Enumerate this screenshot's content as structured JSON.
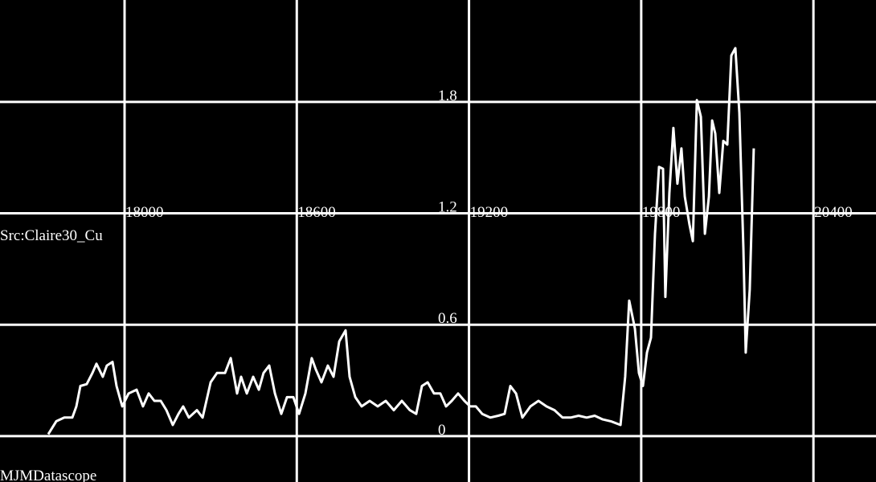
{
  "chart_data": {
    "type": "line",
    "annotations": [
      "Src:Claire30_Cu",
      "MJMDatascope"
    ],
    "xlim": [
      17566,
      20618
    ],
    "ylim": [
      -0.247,
      2.349
    ],
    "xticks": [
      18000,
      18600,
      19200,
      19800,
      20400
    ],
    "yticks": [
      0,
      0.6,
      1.2,
      1.8
    ],
    "grid": true,
    "series": [
      {
        "color": "#ffffff",
        "x": [
          17734,
          17762,
          17790,
          17818,
          17832,
          17846,
          17868,
          17888,
          17902,
          17924,
          17938,
          17958,
          17972,
          17992,
          18014,
          18042,
          18064,
          18084,
          18104,
          18126,
          18146,
          18168,
          18188,
          18204,
          18224,
          18252,
          18272,
          18300,
          18322,
          18350,
          18370,
          18392,
          18406,
          18426,
          18448,
          18468,
          18484,
          18504,
          18524,
          18546,
          18566,
          18588,
          18608,
          18630,
          18652,
          18666,
          18686,
          18708,
          18728,
          18748,
          18770,
          18784,
          18804,
          18826,
          18854,
          18882,
          18910,
          18938,
          18966,
          18994,
          19016,
          19036,
          19056,
          19078,
          19100,
          19120,
          19140,
          19162,
          19184,
          19204,
          19224,
          19246,
          19274,
          19302,
          19324,
          19344,
          19364,
          19386,
          19414,
          19442,
          19470,
          19498,
          19526,
          19554,
          19582,
          19610,
          19638,
          19666,
          19694,
          19728,
          19744,
          19758,
          19778,
          19792,
          19806,
          19820,
          19834,
          19848,
          19862,
          19876,
          19884,
          19898,
          19912,
          19926,
          19940,
          19952,
          19968,
          19980,
          19994,
          20008,
          20022,
          20036,
          20047,
          20058,
          20072,
          20086,
          20100,
          20114,
          20128,
          20142,
          20156,
          20164,
          20178,
          20192
        ],
        "values": [
          0.01,
          0.08,
          0.1,
          0.1,
          0.16,
          0.27,
          0.28,
          0.34,
          0.39,
          0.32,
          0.38,
          0.4,
          0.27,
          0.16,
          0.23,
          0.25,
          0.16,
          0.23,
          0.19,
          0.19,
          0.14,
          0.06,
          0.12,
          0.16,
          0.1,
          0.14,
          0.1,
          0.29,
          0.34,
          0.34,
          0.42,
          0.23,
          0.32,
          0.23,
          0.32,
          0.25,
          0.34,
          0.38,
          0.23,
          0.12,
          0.21,
          0.21,
          0.12,
          0.23,
          0.42,
          0.36,
          0.29,
          0.38,
          0.32,
          0.51,
          0.57,
          0.32,
          0.21,
          0.16,
          0.19,
          0.16,
          0.19,
          0.14,
          0.19,
          0.14,
          0.12,
          0.27,
          0.29,
          0.23,
          0.23,
          0.16,
          0.19,
          0.23,
          0.19,
          0.16,
          0.16,
          0.12,
          0.1,
          0.11,
          0.12,
          0.27,
          0.23,
          0.1,
          0.16,
          0.19,
          0.16,
          0.14,
          0.1,
          0.1,
          0.11,
          0.1,
          0.11,
          0.09,
          0.08,
          0.06,
          0.32,
          0.73,
          0.58,
          0.34,
          0.27,
          0.45,
          0.53,
          1.09,
          1.45,
          1.44,
          0.75,
          1.31,
          1.66,
          1.36,
          1.55,
          1.29,
          1.14,
          1.05,
          1.81,
          1.72,
          1.09,
          1.29,
          1.7,
          1.63,
          1.31,
          1.59,
          1.57,
          2.05,
          2.09,
          1.74,
          1.01,
          0.45,
          0.79,
          1.55
        ]
      }
    ]
  }
}
